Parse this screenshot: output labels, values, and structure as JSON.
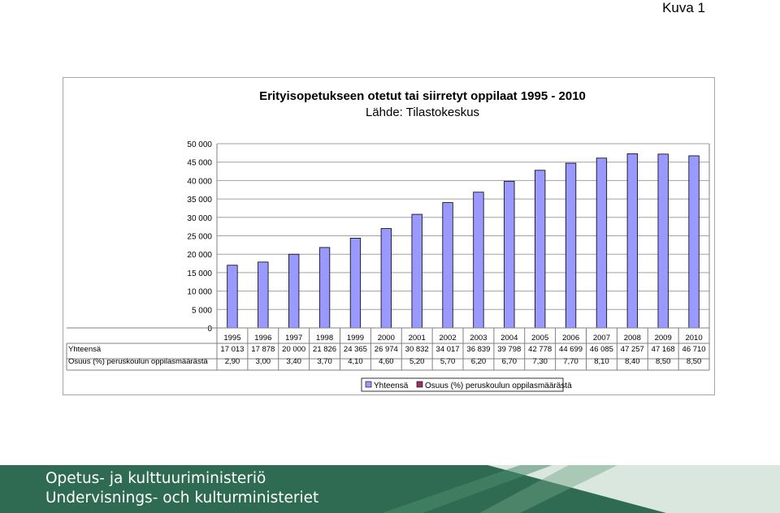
{
  "page_label": "Kuva 1",
  "chart_data": {
    "type": "bar",
    "title": "Erityisopetukseen otetut tai siirretyt oppilaat 1995 - 2010",
    "subtitle": "Lähde: Tilastokeskus",
    "categories": [
      "1995",
      "1996",
      "1997",
      "1998",
      "1999",
      "2000",
      "2001",
      "2002",
      "2003",
      "2004",
      "2005",
      "2006",
      "2007",
      "2008",
      "2009",
      "2010"
    ],
    "ylim": [
      0,
      50000
    ],
    "y_ticks": [
      "0",
      "5 000",
      "10 000",
      "15 000",
      "20 000",
      "25 000",
      "30 000",
      "35 000",
      "40 000",
      "45 000",
      "50 000"
    ],
    "y_tick_values": [
      0,
      5000,
      10000,
      15000,
      20000,
      25000,
      30000,
      35000,
      40000,
      45000,
      50000
    ],
    "grid": "horizontal",
    "legend_position": "bottom",
    "series": [
      {
        "name": "Yhteensä",
        "color": "#9999ff",
        "values": [
          17013,
          17878,
          20000,
          21826,
          24365,
          26974,
          30832,
          34017,
          36839,
          39798,
          42778,
          44699,
          46085,
          47257,
          47168,
          46710
        ],
        "labels": [
          "17 013",
          "17 878",
          "20 000",
          "21 826",
          "24 365",
          "26 974",
          "30 832",
          "34 017",
          "36 839",
          "39 798",
          "42 778",
          "44 699",
          "46 085",
          "47 257",
          "47 168",
          "46 710"
        ]
      },
      {
        "name": "Osuus (%) peruskoulun oppilasmäärästä",
        "color": "#993366",
        "values": [
          2.9,
          3.0,
          3.4,
          3.7,
          4.1,
          4.6,
          5.2,
          5.7,
          6.2,
          6.7,
          7.3,
          7.7,
          8.1,
          8.4,
          8.5,
          8.5
        ],
        "labels": [
          "2,90",
          "3,00",
          "3,40",
          "3,70",
          "4,10",
          "4,60",
          "5,20",
          "5,70",
          "6,20",
          "6,70",
          "7,30",
          "7,70",
          "8,10",
          "8,40",
          "8,50",
          "8,50"
        ]
      }
    ]
  },
  "footer": {
    "line1": "Opetus- ja kulttuuriministeriö",
    "line2": "Undervisnings- och kulturministeriet",
    "band_color": "#2e6b52"
  }
}
